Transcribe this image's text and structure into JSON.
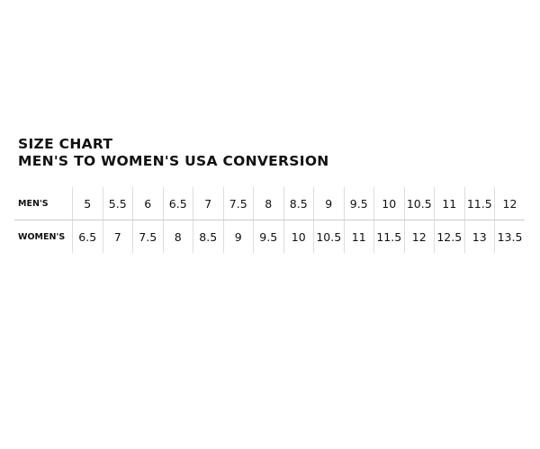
{
  "title": "SIZE CHART",
  "subtitle": "MEN'S TO WOMEN'S USA CONVERSION",
  "rows": [
    {
      "label": "MEN'S",
      "values": [
        "5",
        "5.5",
        "6",
        "6.5",
        "7",
        "7.5",
        "8",
        "8.5",
        "9",
        "9.5",
        "10",
        "10.5",
        "11",
        "11.5",
        "12"
      ]
    },
    {
      "label": "WOMEN'S",
      "values": [
        "6.5",
        "7",
        "7.5",
        "8",
        "8.5",
        "9",
        "9.5",
        "10",
        "10.5",
        "11",
        "11.5",
        "12",
        "12.5",
        "13",
        "13.5"
      ]
    }
  ]
}
